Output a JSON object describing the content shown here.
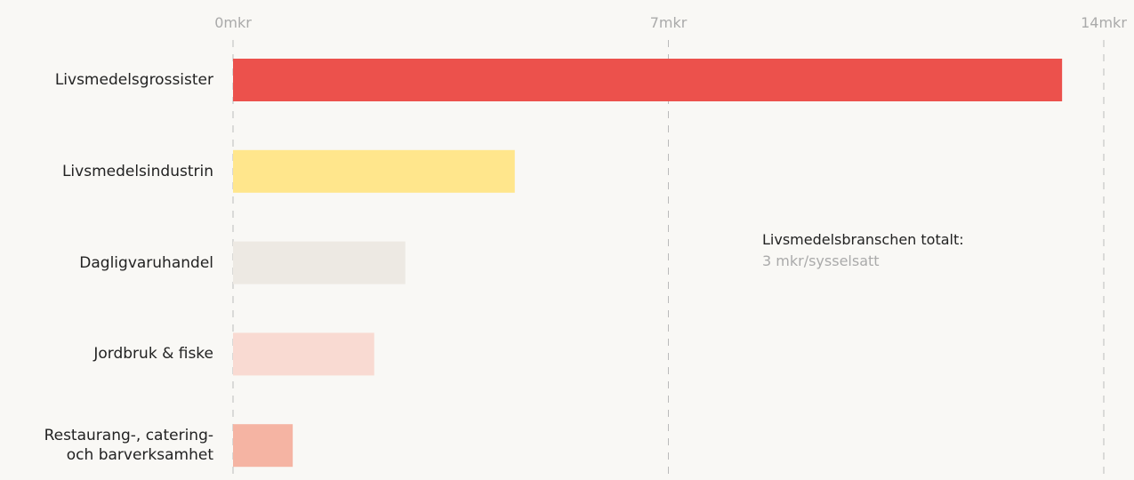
{
  "chart_data": {
    "type": "bar",
    "orientation": "horizontal",
    "categories": [
      "Livsmedelsgrossister",
      "Livsmedelsindustrin",
      "Dagligvaruhandel",
      "Jordbruk & fiske",
      "Restaurang-, catering-\noch barverksamhet"
    ],
    "values": [
      13.33,
      4.53,
      2.77,
      2.27,
      0.96
    ],
    "colors": [
      "#ec514c",
      "#ffe68c",
      "#ede9e3",
      "#f9dad2",
      "#f5b4a3"
    ],
    "xlim": [
      0,
      14
    ],
    "xticks": [
      {
        "value": 0,
        "label": "0mkr"
      },
      {
        "value": 7,
        "label": "7mkr"
      },
      {
        "value": 14,
        "label": "14mkr"
      }
    ],
    "grid": true,
    "annotation": {
      "label": "Livsmedelsbranschen totalt:",
      "text": "3 mkr/sysselsatt"
    }
  }
}
